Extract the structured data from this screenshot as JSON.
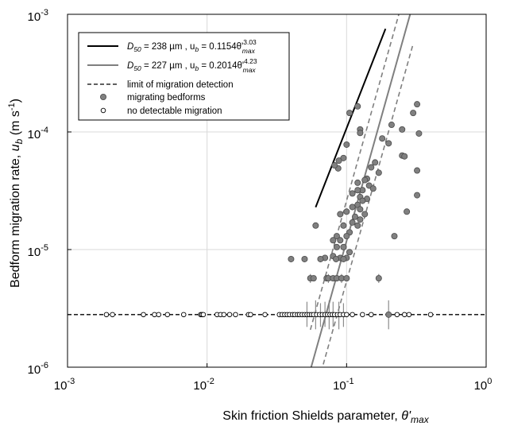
{
  "chart_data": {
    "type": "scatter",
    "xlabel": {
      "text": "Skin friction Shields parameter, ",
      "symbol": "θ'",
      "sub": "max"
    },
    "ylabel": {
      "text": "Bedform migration rate, ",
      "symbol": "u",
      "sub": "b",
      "units_open": " (m s",
      "units_exp": "-1",
      "units_close": ")"
    },
    "x_scale": "log",
    "y_scale": "log",
    "xlim": [
      0.001,
      1
    ],
    "ylim": [
      1e-06,
      0.001
    ],
    "grid": true,
    "x_ticks": [
      {
        "base": "10",
        "exp": "-3",
        "value": 0.001
      },
      {
        "base": "10",
        "exp": "-2",
        "value": 0.01
      },
      {
        "base": "10",
        "exp": "-1",
        "value": 0.1
      },
      {
        "base": "10",
        "exp": "0",
        "value": 1
      }
    ],
    "y_ticks": [
      {
        "base": "10",
        "exp": "-6",
        "value": 1e-06
      },
      {
        "base": "10",
        "exp": "-5",
        "value": 1e-05
      },
      {
        "base": "10",
        "exp": "-4",
        "value": 0.0001
      },
      {
        "base": "10",
        "exp": "-3",
        "value": 0.001
      }
    ],
    "legend_position": "top-left",
    "legend": [
      {
        "kind": "line",
        "color": "#000000",
        "dash": false,
        "parts": [
          "D",
          "50",
          " = 238 µm , u",
          "b",
          " = 0.1154θ'",
          "3.03",
          "max"
        ]
      },
      {
        "kind": "line",
        "color": "#7f7f7f",
        "dash": false,
        "parts": [
          "D",
          "50",
          " = 227 µm , u",
          "b",
          " = 0.2014θ'",
          "4.23",
          "max"
        ]
      },
      {
        "kind": "line",
        "color": "#000000",
        "dash": true,
        "text": "limit of migration detection"
      },
      {
        "kind": "filled",
        "text": "migrating bedforms"
      },
      {
        "kind": "open",
        "text": "no detectable migration"
      }
    ],
    "series": [
      {
        "name": "D50 = 238 µm , ub = 0.1154θ'max^3.03",
        "type": "line",
        "color": "#000000",
        "coef": 0.1154,
        "exp": 3.03,
        "x_range": [
          0.06,
          0.19
        ]
      },
      {
        "name": "D50 = 227 µm , ub = 0.2014θ'max^4.23",
        "type": "line",
        "color": "#7f7f7f",
        "coef": 0.2014,
        "exp": 4.23,
        "x_range": [
          0.055,
          0.3
        ],
        "band_factor": 2.2
      },
      {
        "name": "limit of migration detection",
        "type": "hline",
        "y": 2.8e-06
      },
      {
        "name": "migrating bedforms",
        "type": "scatter",
        "marker": "filled",
        "points": [
          [
            0.105,
            0.000145
          ],
          [
            0.12,
            0.000165
          ],
          [
            0.125,
            0.000105
          ],
          [
            0.125,
            9.8e-05
          ],
          [
            0.1,
            7.8e-05
          ],
          [
            0.095,
            6e-05
          ],
          [
            0.088,
            5.7e-05
          ],
          [
            0.087,
            4.9e-05
          ],
          [
            0.082,
            5.2e-05
          ],
          [
            0.18,
            8.8e-05
          ],
          [
            0.2,
            8e-05
          ],
          [
            0.21,
            0.000115
          ],
          [
            0.25,
            0.000105
          ],
          [
            0.3,
            0.000145
          ],
          [
            0.32,
            0.000172
          ],
          [
            0.33,
            9.7e-05
          ],
          [
            0.25,
            6.3e-05
          ],
          [
            0.26,
            6.2e-05
          ],
          [
            0.32,
            4.7e-05
          ],
          [
            0.16,
            5.5e-05
          ],
          [
            0.15,
            5e-05
          ],
          [
            0.17,
            4.5e-05
          ],
          [
            0.14,
            4e-05
          ],
          [
            0.135,
            3.9e-05
          ],
          [
            0.12,
            3.7e-05
          ],
          [
            0.145,
            3.5e-05
          ],
          [
            0.155,
            3.3e-05
          ],
          [
            0.13,
            3.2e-05
          ],
          [
            0.11,
            3e-05
          ],
          [
            0.125,
            2.8e-05
          ],
          [
            0.14,
            2.7e-05
          ],
          [
            0.13,
            2.6e-05
          ],
          [
            0.12,
            2.4e-05
          ],
          [
            0.11,
            2.3e-05
          ],
          [
            0.125,
            2.2e-05
          ],
          [
            0.1,
            2.1e-05
          ],
          [
            0.09,
            2e-05
          ],
          [
            0.135,
            2e-05
          ],
          [
            0.115,
            1.9e-05
          ],
          [
            0.125,
            1.8e-05
          ],
          [
            0.11,
            1.7e-05
          ],
          [
            0.12,
            1.6e-05
          ],
          [
            0.095,
            1.6e-05
          ],
          [
            0.105,
            1.4e-05
          ],
          [
            0.085,
            1.3e-05
          ],
          [
            0.1,
            1.3e-05
          ],
          [
            0.06,
            1.6e-05
          ],
          [
            0.08,
            1.2e-05
          ],
          [
            0.09,
            1.2e-05
          ],
          [
            0.085,
            1.05e-05
          ],
          [
            0.095,
            1.05e-05
          ],
          [
            0.105,
            9.5e-06
          ],
          [
            0.08,
            8.8e-06
          ],
          [
            0.09,
            8.5e-06
          ],
          [
            0.1,
            8.5e-06
          ],
          [
            0.07,
            8.5e-06
          ],
          [
            0.04,
            8.3e-06
          ],
          [
            0.05,
            8.3e-06
          ],
          [
            0.065,
            8.3e-06
          ],
          [
            0.084,
            8.3e-06
          ],
          [
            0.095,
            8.3e-06
          ],
          [
            0.32,
            2.9e-05
          ],
          [
            0.22,
            1.3e-05
          ],
          [
            0.27,
            2.1e-05
          ],
          [
            0.12,
            3.2e-05
          ],
          [
            0.055,
            5.7e-06
          ],
          [
            0.058,
            5.7e-06
          ],
          [
            0.072,
            5.7e-06
          ],
          [
            0.074,
            5.7e-06
          ],
          [
            0.08,
            5.7e-06
          ],
          [
            0.085,
            5.7e-06
          ],
          [
            0.092,
            5.7e-06
          ],
          [
            0.1,
            5.7e-06
          ],
          [
            0.17,
            5.7e-06
          ],
          [
            0.2,
            2.8e-06
          ]
        ]
      },
      {
        "name": "no detectable migration",
        "type": "scatter",
        "marker": "open",
        "points": [
          [
            0.0019,
            2.8e-06
          ],
          [
            0.0021,
            2.8e-06
          ],
          [
            0.0035,
            2.8e-06
          ],
          [
            0.0042,
            2.8e-06
          ],
          [
            0.0045,
            2.8e-06
          ],
          [
            0.0052,
            2.8e-06
          ],
          [
            0.0068,
            2.8e-06
          ],
          [
            0.009,
            2.8e-06
          ],
          [
            0.0092,
            2.8e-06
          ],
          [
            0.0094,
            2.8e-06
          ],
          [
            0.0118,
            2.8e-06
          ],
          [
            0.0125,
            2.8e-06
          ],
          [
            0.0132,
            2.8e-06
          ],
          [
            0.0145,
            2.8e-06
          ],
          [
            0.016,
            2.8e-06
          ],
          [
            0.0198,
            2.8e-06
          ],
          [
            0.0205,
            2.8e-06
          ],
          [
            0.026,
            2.8e-06
          ],
          [
            0.033,
            2.8e-06
          ],
          [
            0.0345,
            2.8e-06
          ],
          [
            0.036,
            2.8e-06
          ],
          [
            0.0375,
            2.8e-06
          ],
          [
            0.039,
            2.8e-06
          ],
          [
            0.041,
            2.8e-06
          ],
          [
            0.0425,
            2.8e-06
          ],
          [
            0.0445,
            2.8e-06
          ],
          [
            0.046,
            2.8e-06
          ],
          [
            0.048,
            2.8e-06
          ],
          [
            0.05,
            2.8e-06
          ],
          [
            0.052,
            2.8e-06
          ],
          [
            0.054,
            2.8e-06
          ],
          [
            0.056,
            2.8e-06
          ],
          [
            0.058,
            2.8e-06
          ],
          [
            0.061,
            2.8e-06
          ],
          [
            0.064,
            2.8e-06
          ],
          [
            0.067,
            2.8e-06
          ],
          [
            0.07,
            2.8e-06
          ],
          [
            0.073,
            2.8e-06
          ],
          [
            0.076,
            2.8e-06
          ],
          [
            0.079,
            2.8e-06
          ],
          [
            0.082,
            2.8e-06
          ],
          [
            0.086,
            2.8e-06
          ],
          [
            0.09,
            2.8e-06
          ],
          [
            0.095,
            2.8e-06
          ],
          [
            0.1,
            2.8e-06
          ],
          [
            0.11,
            2.8e-06
          ],
          [
            0.13,
            2.8e-06
          ],
          [
            0.15,
            2.8e-06
          ],
          [
            0.23,
            2.8e-06
          ],
          [
            0.26,
            2.8e-06
          ],
          [
            0.28,
            2.8e-06
          ],
          [
            0.4,
            2.8e-06
          ]
        ]
      },
      {
        "name": "error bars",
        "type": "vbars",
        "bars": [
          [
            0.052,
            2.2e-06,
            3.6e-06
          ],
          [
            0.06,
            2.1e-06,
            3.7e-06
          ],
          [
            0.065,
            2.2e-06,
            3.5e-06
          ],
          [
            0.07,
            2.2e-06,
            3.6e-06
          ],
          [
            0.075,
            2.1e-06,
            3.7e-06
          ],
          [
            0.08,
            2.2e-06,
            3.6e-06
          ],
          [
            0.088,
            2.1e-06,
            3.6e-06
          ],
          [
            0.095,
            2.2e-06,
            3.5e-06
          ],
          [
            0.2,
            2.1e-06,
            3.7e-06
          ],
          [
            0.055,
            5.2e-06,
            6.2e-06
          ],
          [
            0.074,
            5.2e-06,
            6.2e-06
          ],
          [
            0.092,
            5.2e-06,
            6.2e-06
          ],
          [
            0.17,
            5.2e-06,
            6.2e-06
          ],
          [
            0.04,
            7.8e-06,
            8.8e-06
          ],
          [
            0.065,
            7.8e-06,
            8.8e-06
          ],
          [
            0.084,
            7.8e-06,
            8.8e-06
          ]
        ]
      }
    ]
  }
}
